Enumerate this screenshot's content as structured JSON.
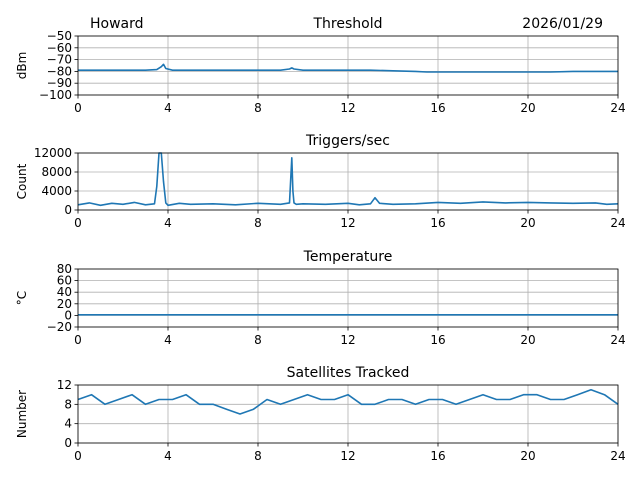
{
  "header": {
    "station": "Howard",
    "date": "2026/01/29"
  },
  "colors": {
    "series": "#1f77b4",
    "grid": "#b0b0b0",
    "axes": "#000000"
  },
  "chart_data": [
    {
      "type": "line",
      "title": "Threshold",
      "ylabel": "dBm",
      "xlabel": "",
      "xlim": [
        0,
        24
      ],
      "ylim": [
        -100,
        -50
      ],
      "xticks": [
        0,
        4,
        8,
        12,
        16,
        20,
        24
      ],
      "yticks": [
        -100,
        -90,
        -80,
        -70,
        -60,
        -50
      ],
      "grid": true,
      "series": [
        {
          "x": [
            0,
            1,
            2,
            3,
            3.5,
            3.7,
            3.8,
            3.9,
            4.2,
            5,
            6,
            7,
            8,
            9,
            9.4,
            9.5,
            9.6,
            10,
            11,
            12,
            13,
            14,
            15,
            15.5,
            16,
            17,
            18,
            19,
            20,
            21,
            22,
            23,
            24
          ],
          "y": [
            -79,
            -79,
            -79,
            -79,
            -78.5,
            -76,
            -74,
            -77.5,
            -79,
            -79,
            -79,
            -79,
            -79,
            -79,
            -78,
            -77,
            -78,
            -79,
            -79,
            -79,
            -79,
            -79.5,
            -80,
            -80.5,
            -80.5,
            -80.5,
            -80.5,
            -80.5,
            -80.5,
            -80.5,
            -80,
            -80,
            -80
          ]
        }
      ]
    },
    {
      "type": "line",
      "title": "Triggers/sec",
      "ylabel": "Count",
      "xlabel": "",
      "xlim": [
        0,
        24
      ],
      "ylim": [
        0,
        12000
      ],
      "xticks": [
        0,
        4,
        8,
        12,
        16,
        20,
        24
      ],
      "yticks": [
        0,
        4000,
        8000,
        12000
      ],
      "grid": true,
      "series": [
        {
          "x": [
            0,
            0.5,
            1,
            1.5,
            2,
            2.5,
            3,
            3.4,
            3.5,
            3.6,
            3.7,
            3.8,
            3.9,
            4.0,
            4.5,
            5,
            6,
            7,
            8,
            9,
            9.4,
            9.5,
            9.55,
            9.6,
            9.7,
            10,
            11,
            12,
            12.5,
            13,
            13.2,
            13.4,
            14,
            15,
            16,
            17,
            18,
            19,
            20,
            21,
            22,
            23,
            23.5,
            24
          ],
          "y": [
            1100,
            1500,
            1000,
            1400,
            1200,
            1600,
            1100,
            1300,
            5000,
            12000,
            12000,
            6000,
            1500,
            1000,
            1400,
            1200,
            1300,
            1100,
            1400,
            1200,
            1500,
            11000,
            4000,
            1500,
            1200,
            1300,
            1200,
            1400,
            1100,
            1300,
            2600,
            1400,
            1200,
            1300,
            1600,
            1400,
            1700,
            1500,
            1600,
            1500,
            1400,
            1500,
            1200,
            1300
          ]
        }
      ]
    },
    {
      "type": "line",
      "title": "Temperature",
      "ylabel": "°C",
      "xlabel": "",
      "xlim": [
        0,
        24
      ],
      "ylim": [
        -20,
        80
      ],
      "xticks": [
        0,
        4,
        8,
        12,
        16,
        20,
        24
      ],
      "yticks": [
        -20,
        0,
        20,
        40,
        60,
        80
      ],
      "grid": true,
      "series": [
        {
          "x": [
            0,
            24
          ],
          "y": [
            1,
            1
          ]
        }
      ]
    },
    {
      "type": "line",
      "title": "Satellites Tracked",
      "ylabel": "Number",
      "xlabel": "",
      "xlim": [
        0,
        24
      ],
      "ylim": [
        0,
        12
      ],
      "xticks": [
        0,
        4,
        8,
        12,
        16,
        20,
        24
      ],
      "yticks": [
        0,
        4,
        8,
        12
      ],
      "grid": true,
      "series": [
        {
          "x": [
            0,
            0.6,
            1.2,
            1.8,
            2.4,
            3.0,
            3.6,
            4.2,
            4.8,
            5.4,
            6.0,
            6.6,
            7.2,
            7.8,
            8.4,
            9.0,
            9.6,
            10.2,
            10.8,
            11.4,
            12.0,
            12.6,
            13.2,
            13.8,
            14.4,
            15.0,
            15.6,
            16.2,
            16.8,
            17.4,
            18.0,
            18.6,
            19.2,
            19.8,
            20.4,
            21.0,
            21.6,
            22.2,
            22.8,
            23.4,
            24.0
          ],
          "y": [
            9,
            10,
            8,
            9,
            10,
            8,
            9,
            9,
            10,
            8,
            8,
            7,
            6,
            7,
            9,
            8,
            9,
            10,
            9,
            9,
            10,
            8,
            8,
            9,
            9,
            8,
            9,
            9,
            8,
            9,
            10,
            9,
            9,
            10,
            10,
            9,
            9,
            10,
            11,
            10,
            8
          ]
        }
      ]
    }
  ]
}
